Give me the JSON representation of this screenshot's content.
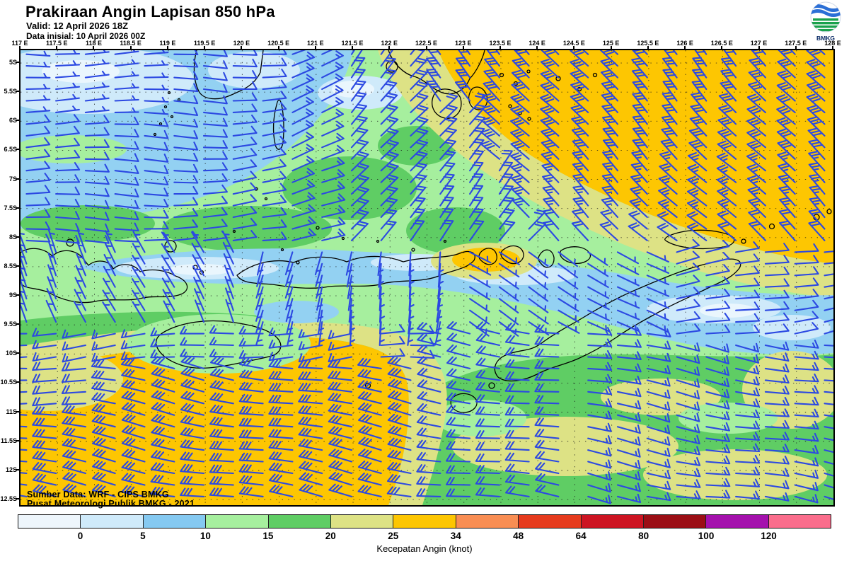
{
  "header": {
    "title": "Prakiraan Angin Lapisan 850 hPa",
    "valid": "Valid: 12 April 2026 18Z",
    "init": "Data inisial: 10 April 2026 00Z",
    "logo_text": "BMKG"
  },
  "axes": {
    "lon_labels": [
      "117 E",
      "117.5 E",
      "118 E",
      "118.5 E",
      "119 E",
      "119.5 E",
      "120 E",
      "120.5 E",
      "121 E",
      "121.5 E",
      "122 E",
      "122.5 E",
      "123 E",
      "123.5 E",
      "124 E",
      "124.5 E",
      "125 E",
      "125.5 E",
      "126 E",
      "126.5 E",
      "127 E",
      "127.5 E",
      "128 E"
    ],
    "lat_labels": [
      "5S",
      "5.5S",
      "6S",
      "6.5S",
      "7S",
      "7.5S",
      "8S",
      "8.5S",
      "9S",
      "9.5S",
      "10S",
      "10.5S",
      "11S",
      "11.5S",
      "12S",
      "12.5S"
    ],
    "lon_min": 117,
    "lon_max": 128,
    "lat_min_s": 4.781,
    "lat_max_s": 12.597
  },
  "map_text": {
    "source_line1": "Sumber Data: WRF - CIPS BMKG",
    "source_line2": "Pusat Meteorologi Publik BMKG -  2021"
  },
  "legend": {
    "caption": "Kecepatan Angin (knot)",
    "ticks": [
      "0",
      "5",
      "10",
      "15",
      "20",
      "25",
      "34",
      "48",
      "64",
      "80",
      "100",
      "120"
    ],
    "colors": [
      "#eef6fc",
      "#cfeafa",
      "#85c9f1",
      "#a6ef9e",
      "#5fcd64",
      "#dde285",
      "#fdc602",
      "#f98e53",
      "#e63b1d",
      "#cd1422",
      "#9b0e15",
      "#a411ad",
      "#fa6d8c"
    ]
  },
  "chart_data": {
    "type": "map",
    "title": "Prakiraan Angin Lapisan 850 hPa",
    "legend_label": "Kecepatan Angin (knot)",
    "speed_scale_knots": [
      0,
      5,
      10,
      15,
      20,
      25,
      34,
      48,
      64,
      80,
      100,
      120
    ],
    "lon_range_deg_e": [
      117,
      128
    ],
    "lat_range_deg_s": [
      5,
      12.5
    ]
  },
  "wind_field": {
    "barb_color": "#2c49e2",
    "grid_dlon": 0.4,
    "grid_dlat": 0.2,
    "zones": [
      {
        "name": "nw-corner-calm",
        "lon": [
          116.9,
          118.7
        ],
        "lat": [
          4.7,
          5.9
        ],
        "dir": 90,
        "speed": 5
      },
      {
        "name": "ne-gold-a",
        "lon": [
          122.6,
          128.2
        ],
        "lat": [
          4.7,
          5.7
        ],
        "dir": 318,
        "speed": 30
      },
      {
        "name": "ne-gold-b",
        "lon": [
          123.3,
          128.2
        ],
        "lat": [
          5.7,
          6.7
        ],
        "dir": 316,
        "speed": 30
      },
      {
        "name": "ne-gold-c",
        "lon": [
          123.8,
          128.2
        ],
        "lat": [
          6.7,
          7.7
        ],
        "dir": 314,
        "speed": 28
      },
      {
        "name": "ne-gold-d",
        "lon": [
          124.2,
          128.2
        ],
        "lat": [
          7.7,
          8.25
        ],
        "dir": 312,
        "speed": 22
      },
      {
        "name": "ne-olive",
        "lon": [
          121.3,
          128.2
        ],
        "lat": [
          4.7,
          8.25
        ],
        "dir": 40,
        "speed": 20
      },
      {
        "name": "n-green",
        "lon": [
          120.5,
          121.3
        ],
        "lat": [
          4.7,
          8.25
        ],
        "dir": 70,
        "speed": 15
      },
      {
        "name": "n-lightgreen",
        "lon": [
          119.5,
          120.5
        ],
        "lat": [
          4.7,
          8.25
        ],
        "dir": 85,
        "speed": 12
      },
      {
        "name": "nw-blue",
        "lon": [
          116.9,
          119.5
        ],
        "lat": [
          4.7,
          8.25
        ],
        "dir": 90,
        "speed": 10
      },
      {
        "name": "band-west",
        "lon": [
          116.9,
          120.0
        ],
        "lat": [
          8.25,
          9.45
        ],
        "dir": 335,
        "speed": 8
      },
      {
        "name": "band-mid",
        "lon": [
          120.0,
          123.0
        ],
        "lat": [
          8.25,
          9.45
        ],
        "dir": 190,
        "speed": 5
      },
      {
        "name": "band-east",
        "lon": [
          123.0,
          125.5
        ],
        "lat": [
          8.25,
          9.45
        ],
        "dir": 120,
        "speed": 8
      },
      {
        "name": "band-far-east",
        "lon": [
          125.5,
          128.2
        ],
        "lat": [
          8.25,
          9.7
        ],
        "dir": 80,
        "speed": 10
      },
      {
        "name": "sw-green-band",
        "lon": [
          116.9,
          121.5
        ],
        "lat": [
          9.45,
          10.15
        ],
        "dir": 265,
        "speed": 15
      },
      {
        "name": "sw-olive-west",
        "lon": [
          116.9,
          118.0
        ],
        "lat": [
          10.15,
          11.0
        ],
        "dir": 272,
        "speed": 20
      },
      {
        "name": "sw-gold",
        "lon": [
          116.9,
          122.3
        ],
        "lat": [
          10.15,
          12.7
        ],
        "dir": 280,
        "speed": 30
      },
      {
        "name": "s-central",
        "lon": [
          122.3,
          124.3
        ],
        "lat": [
          9.45,
          12.7
        ],
        "dir": 278,
        "speed": 22
      },
      {
        "name": "se-region",
        "lon": [
          124.3,
          128.2
        ],
        "lat": [
          9.45,
          12.7
        ],
        "dir": 100,
        "speed": 18
      }
    ],
    "default": {
      "dir": 90,
      "speed": 12
    }
  }
}
